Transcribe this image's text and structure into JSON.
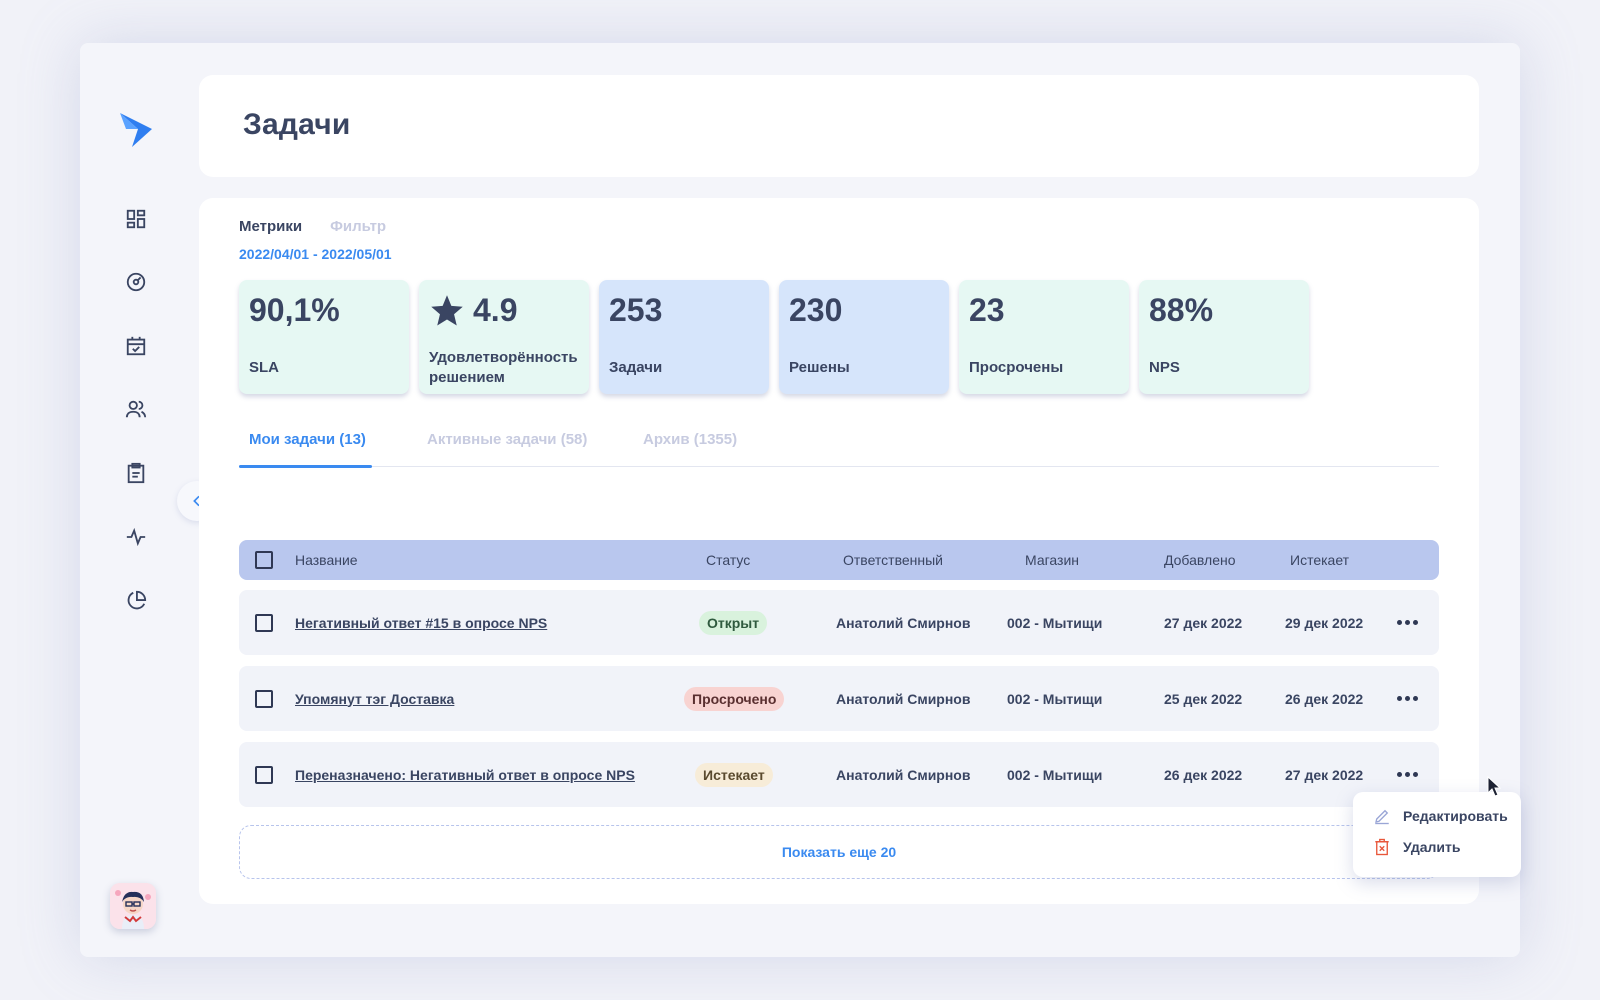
{
  "page": {
    "title": "Задачи"
  },
  "top_tabs": [
    {
      "label": "Метрики",
      "active": true
    },
    {
      "label": "Фильтр",
      "active": false
    }
  ],
  "date_range": "2022/04/01 - 2022/05/01",
  "metrics": [
    {
      "value": "90,1%",
      "label": "SLA",
      "color": "#e6f8f3",
      "icon": ""
    },
    {
      "value": "4.9",
      "label": "Удовлетворённость решением",
      "color": "#e6f8f3",
      "icon": "star-icon"
    },
    {
      "value": "253",
      "label": "Задачи",
      "color": "#d6e5fb",
      "icon": ""
    },
    {
      "value": "230",
      "label": "Решены",
      "color": "#d6e5fb",
      "icon": ""
    },
    {
      "value": "23",
      "label": "Просрочены",
      "color": "#e6f8f3",
      "icon": ""
    },
    {
      "value": "88%",
      "label": "NPS",
      "color": "#e6f8f3",
      "icon": ""
    }
  ],
  "tabs": [
    {
      "label": "Мои задачи (13)",
      "active": true
    },
    {
      "label": "Активные задачи (58)",
      "active": false
    },
    {
      "label": "Архив (1355)",
      "active": false
    }
  ],
  "table": {
    "columns": [
      "Название",
      "Статус",
      "Ответственный",
      "Магазин",
      "Добавлено",
      "Истекает"
    ],
    "rows": [
      {
        "name": "Негативный ответ #15 в опросе NPS",
        "status": "Открыт",
        "status_kind": "open",
        "assignee": "Анатолий Смирнов",
        "store": "002 - Мытищи",
        "added": "27 дек 2022",
        "expires": "29 дек 2022"
      },
      {
        "name": "Упомянут тэг Доставка",
        "status": "Просрочено",
        "status_kind": "overdue",
        "assignee": "Анатолий Смирнов",
        "store": "002 - Мытищи",
        "added": "25 дек 2022",
        "expires": "26 дек 2022"
      },
      {
        "name": "Переназначено: Негативный ответ в опросе NPS",
        "status": "Истекает",
        "status_kind": "expiring",
        "assignee": "Анатолий Смирнов",
        "store": "002 - Мытищи",
        "added": "26 дек 2022",
        "expires": "27 дек 2022"
      }
    ]
  },
  "show_more": "Показать еще 20",
  "context_menu": {
    "edit": "Редактировать",
    "delete": "Удалить"
  },
  "sidebar": {
    "icons": [
      "dashboard-icon",
      "speedometer-icon",
      "calendar-check-icon",
      "users-icon",
      "clipboard-icon",
      "activity-icon",
      "pie-chart-icon"
    ]
  },
  "colors": {
    "accent": "#3a8af0",
    "table_header": "#b9c7ee",
    "delete_icon": "#e8563a"
  }
}
